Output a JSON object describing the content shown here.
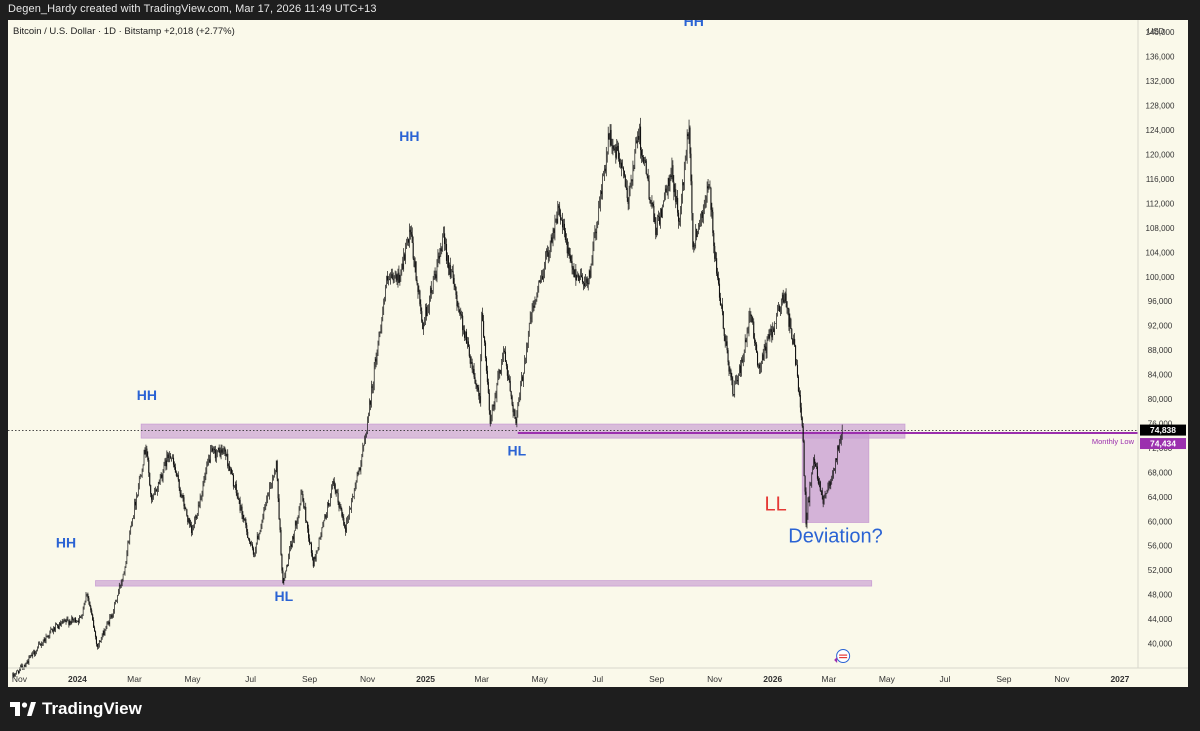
{
  "header": {
    "caption": "Degen_Hardy created with TradingView.com, Mar 17, 2026 11:49 UTC+13"
  },
  "chart_header": {
    "symbol_line": "Bitcoin / U.S. Dollar · 1D · Bitstamp  +2,018 (+2.77%)"
  },
  "footer": {
    "brand": "TradingView",
    "brand_icon": "tradingview-logo-icon"
  },
  "colors": {
    "background": "#faf9ea",
    "candles": "#111111",
    "zone_fill": "#c79bd1",
    "monthly_low_line": "#9b2fae",
    "structure_label": "#2a63d4",
    "ll_label": "#e53935",
    "deviation_label": "#2a63d4",
    "price_badge_bg": "#000000",
    "monthly_low_badge_bg": "#9b2fae"
  },
  "chart_data": {
    "type": "candlestick",
    "instrument": "Bitcoin / U.S. Dollar",
    "timeframe": "1D",
    "exchange": "Bitstamp",
    "change": "+2,018 (+2.77%)",
    "currency_label": "USD",
    "grid": false,
    "x_range": [
      "2023-10-20",
      "2027-01-20"
    ],
    "y_range": [
      36000,
      142000
    ],
    "y_ticks": [
      {
        "value": 40000,
        "label": "40,000"
      },
      {
        "value": 44000,
        "label": "44,000"
      },
      {
        "value": 48000,
        "label": "48,000"
      },
      {
        "value": 52000,
        "label": "52,000"
      },
      {
        "value": 56000,
        "label": "56,000"
      },
      {
        "value": 60000,
        "label": "60,000"
      },
      {
        "value": 64000,
        "label": "64,000"
      },
      {
        "value": 68000,
        "label": "68,000"
      },
      {
        "value": 72000,
        "label": "72,000"
      },
      {
        "value": 76000,
        "label": "76,000"
      },
      {
        "value": 80000,
        "label": "80,000"
      },
      {
        "value": 84000,
        "label": "84,000"
      },
      {
        "value": 88000,
        "label": "88,000"
      },
      {
        "value": 92000,
        "label": "92,000"
      },
      {
        "value": 96000,
        "label": "96,000"
      },
      {
        "value": 100000,
        "label": "100,000"
      },
      {
        "value": 104000,
        "label": "104,000"
      },
      {
        "value": 108000,
        "label": "108,000"
      },
      {
        "value": 112000,
        "label": "112,000"
      },
      {
        "value": 116000,
        "label": "116,000"
      },
      {
        "value": 120000,
        "label": "120,000"
      },
      {
        "value": 124000,
        "label": "124,000"
      },
      {
        "value": 128000,
        "label": "128,000"
      },
      {
        "value": 132000,
        "label": "132,000"
      },
      {
        "value": 136000,
        "label": "136,000"
      },
      {
        "value": 140000,
        "label": "140,000"
      }
    ],
    "x_ticks": [
      {
        "date": "2023-11-01",
        "label": "Nov",
        "bold": false
      },
      {
        "date": "2024-01-01",
        "label": "2024",
        "bold": true
      },
      {
        "date": "2024-03-01",
        "label": "Mar",
        "bold": false
      },
      {
        "date": "2024-05-01",
        "label": "May",
        "bold": false
      },
      {
        "date": "2024-07-01",
        "label": "Jul",
        "bold": false
      },
      {
        "date": "2024-09-01",
        "label": "Sep",
        "bold": false
      },
      {
        "date": "2024-11-01",
        "label": "Nov",
        "bold": false
      },
      {
        "date": "2025-01-01",
        "label": "2025",
        "bold": true
      },
      {
        "date": "2025-03-01",
        "label": "Mar",
        "bold": false
      },
      {
        "date": "2025-05-01",
        "label": "May",
        "bold": false
      },
      {
        "date": "2025-07-01",
        "label": "Jul",
        "bold": false
      },
      {
        "date": "2025-09-01",
        "label": "Sep",
        "bold": false
      },
      {
        "date": "2025-11-01",
        "label": "Nov",
        "bold": false
      },
      {
        "date": "2026-01-01",
        "label": "2026",
        "bold": true
      },
      {
        "date": "2026-03-01",
        "label": "Mar",
        "bold": false
      },
      {
        "date": "2026-05-01",
        "label": "May",
        "bold": false
      },
      {
        "date": "2026-07-01",
        "label": "Jul",
        "bold": false
      },
      {
        "date": "2026-09-01",
        "label": "Sep",
        "bold": false
      },
      {
        "date": "2026-11-01",
        "label": "Nov",
        "bold": false
      },
      {
        "date": "2027-01-01",
        "label": "2027",
        "bold": true
      }
    ],
    "price_path": [
      [
        "2023-10-25",
        34500
      ],
      [
        "2023-11-10",
        37000
      ],
      [
        "2023-12-05",
        42000
      ],
      [
        "2023-12-20",
        43500
      ],
      [
        "2024-01-05",
        44000
      ],
      [
        "2024-01-12",
        48500
      ],
      [
        "2024-01-23",
        39500
      ],
      [
        "2024-02-08",
        45000
      ],
      [
        "2024-02-20",
        52000
      ],
      [
        "2024-02-28",
        60000
      ],
      [
        "2024-03-14",
        72500
      ],
      [
        "2024-03-20",
        63000
      ],
      [
        "2024-04-08",
        71500
      ],
      [
        "2024-05-01",
        58000
      ],
      [
        "2024-05-21",
        71000
      ],
      [
        "2024-06-05",
        71500
      ],
      [
        "2024-07-05",
        54500
      ],
      [
        "2024-07-29",
        69500
      ],
      [
        "2024-08-05",
        49500
      ],
      [
        "2024-08-25",
        64500
      ],
      [
        "2024-09-06",
        53000
      ],
      [
        "2024-09-27",
        66000
      ],
      [
        "2024-10-10",
        59000
      ],
      [
        "2024-10-29",
        72000
      ],
      [
        "2024-11-12",
        88000
      ],
      [
        "2024-11-22",
        99000
      ],
      [
        "2024-12-05",
        100000
      ],
      [
        "2024-12-17",
        107000
      ],
      [
        "2024-12-30",
        92000
      ],
      [
        "2025-01-21",
        106000
      ],
      [
        "2025-02-03",
        97000
      ],
      [
        "2025-02-28",
        80000
      ],
      [
        "2025-03-02",
        94000
      ],
      [
        "2025-03-11",
        76500
      ],
      [
        "2025-03-25",
        88000
      ],
      [
        "2025-04-07",
        76000
      ],
      [
        "2025-04-22",
        93000
      ],
      [
        "2025-05-22",
        111000
      ],
      [
        "2025-06-05",
        101000
      ],
      [
        "2025-06-22",
        99000
      ],
      [
        "2025-07-14",
        123000
      ],
      [
        "2025-07-28",
        118000
      ],
      [
        "2025-08-02",
        112000
      ],
      [
        "2025-08-14",
        124000
      ],
      [
        "2025-09-01",
        107500
      ],
      [
        "2025-09-18",
        117000
      ],
      [
        "2025-09-26",
        109000
      ],
      [
        "2025-10-06",
        126000
      ],
      [
        "2025-10-10",
        105000
      ],
      [
        "2025-10-27",
        115000
      ],
      [
        "2025-11-04",
        100000
      ],
      [
        "2025-11-21",
        81000
      ],
      [
        "2025-12-01",
        86000
      ],
      [
        "2025-12-10",
        94000
      ],
      [
        "2025-12-18",
        85000
      ],
      [
        "2026-01-05",
        93000
      ],
      [
        "2026-01-14",
        97000
      ],
      [
        "2026-01-25",
        88000
      ],
      [
        "2026-02-02",
        76500
      ],
      [
        "2026-02-06",
        60000
      ],
      [
        "2026-02-14",
        70500
      ],
      [
        "2026-02-24",
        63500
      ],
      [
        "2026-03-06",
        68000
      ],
      [
        "2026-03-16",
        74838
      ]
    ],
    "lines": [
      {
        "name": "monthly-low",
        "label": "Monthly Low",
        "price": 74434,
        "from": "2025-04-08",
        "to": "2027-01-20"
      },
      {
        "name": "last-price",
        "price": 74838,
        "style": "dotted"
      }
    ],
    "zones": [
      {
        "name": "resistance-zone-upper",
        "from": "2024-03-08",
        "to": "2026-05-20",
        "low": 73600,
        "high": 75900
      },
      {
        "name": "support-zone-lower",
        "from": "2024-01-20",
        "to": "2026-04-15",
        "low": 49400,
        "high": 50300
      },
      {
        "name": "deviation-box",
        "from": "2026-02-01",
        "to": "2026-04-12",
        "low": 59800,
        "high": 74200
      }
    ],
    "annotations": [
      {
        "name": "hh-label-1",
        "text": "HH",
        "date": "2023-12-20",
        "price": 55700,
        "color_key": "structure_label",
        "size": 14
      },
      {
        "name": "hh-label-2",
        "text": "HH",
        "date": "2024-03-14",
        "price": 79800,
        "color_key": "structure_label",
        "size": 14
      },
      {
        "name": "hl-label-1",
        "text": "HL",
        "date": "2024-08-05",
        "price": 47000,
        "color_key": "structure_label",
        "size": 14
      },
      {
        "name": "hh-label-3",
        "text": "HH",
        "date": "2024-12-15",
        "price": 122200,
        "color_key": "structure_label",
        "size": 14
      },
      {
        "name": "hl-label-2",
        "text": "HL",
        "date": "2025-04-07",
        "price": 70800,
        "color_key": "structure_label",
        "size": 14
      },
      {
        "name": "hh-label-4",
        "text": "HH",
        "date": "2025-10-10",
        "price": 141000,
        "color_key": "structure_label",
        "size": 14
      },
      {
        "name": "ll-label",
        "text": "LL",
        "date": "2026-01-04",
        "price": 61800,
        "color_key": "ll_label",
        "size": 20
      },
      {
        "name": "deviation-label",
        "text": "Deviation?",
        "date": "2026-03-08",
        "price": 56500,
        "color_key": "deviation_label",
        "size": 20
      }
    ],
    "price_badges": [
      {
        "name": "last-price-badge",
        "text": "74,838",
        "price": 74838,
        "bg_key": "price_badge_bg"
      },
      {
        "name": "monthly-low-badge",
        "text": "74,434",
        "price": 74434,
        "bg_key": "monthly_low_badge_bg"
      }
    ],
    "event_marker": {
      "name": "us-event-icon",
      "date": "2026-03-16"
    }
  }
}
